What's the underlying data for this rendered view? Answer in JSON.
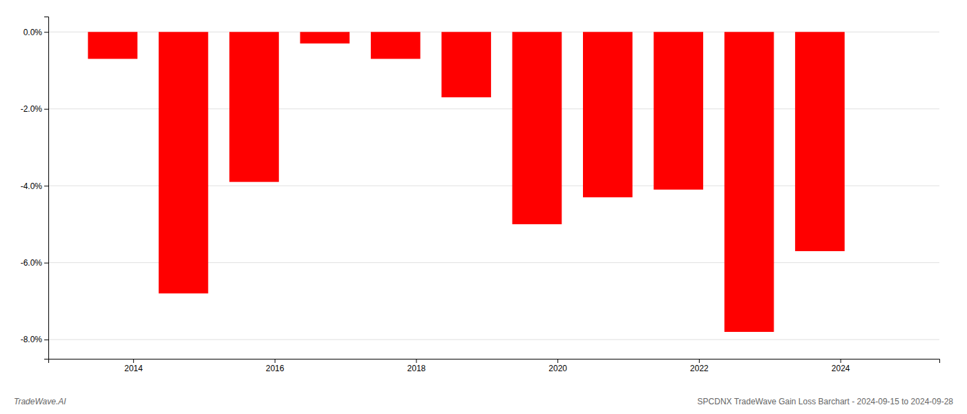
{
  "chart_data": {
    "type": "bar",
    "title": "SPCDNX TradeWave Gain Loss Barchart - 2024-09-15 to 2024-09-28",
    "annotations": [
      "TradeWave.AI"
    ],
    "x": [
      2013.71,
      2014.71,
      2015.71,
      2016.71,
      2017.71,
      2018.71,
      2019.71,
      2020.71,
      2021.71,
      2022.71,
      2023.71
    ],
    "values": [
      -0.007,
      -0.068,
      -0.039,
      -0.003,
      -0.007,
      -0.017,
      -0.05,
      -0.043,
      -0.041,
      -0.078,
      -0.057
    ],
    "color": "#ff0000",
    "xlim": [
      2012.8,
      2025.4
    ],
    "xticks": [
      2014,
      2016,
      2018,
      2020,
      2022,
      2024
    ],
    "ylim": [
      -0.085,
      0.004
    ],
    "yticks": [
      {
        "value": 0.0,
        "label": "0.0%"
      },
      {
        "value": -0.02,
        "label": "-2.0%"
      },
      {
        "value": -0.04,
        "label": "-4.0%"
      },
      {
        "value": -0.06,
        "label": "-6.0%"
      },
      {
        "value": -0.08,
        "label": "-8.0%"
      }
    ],
    "grid": true
  }
}
